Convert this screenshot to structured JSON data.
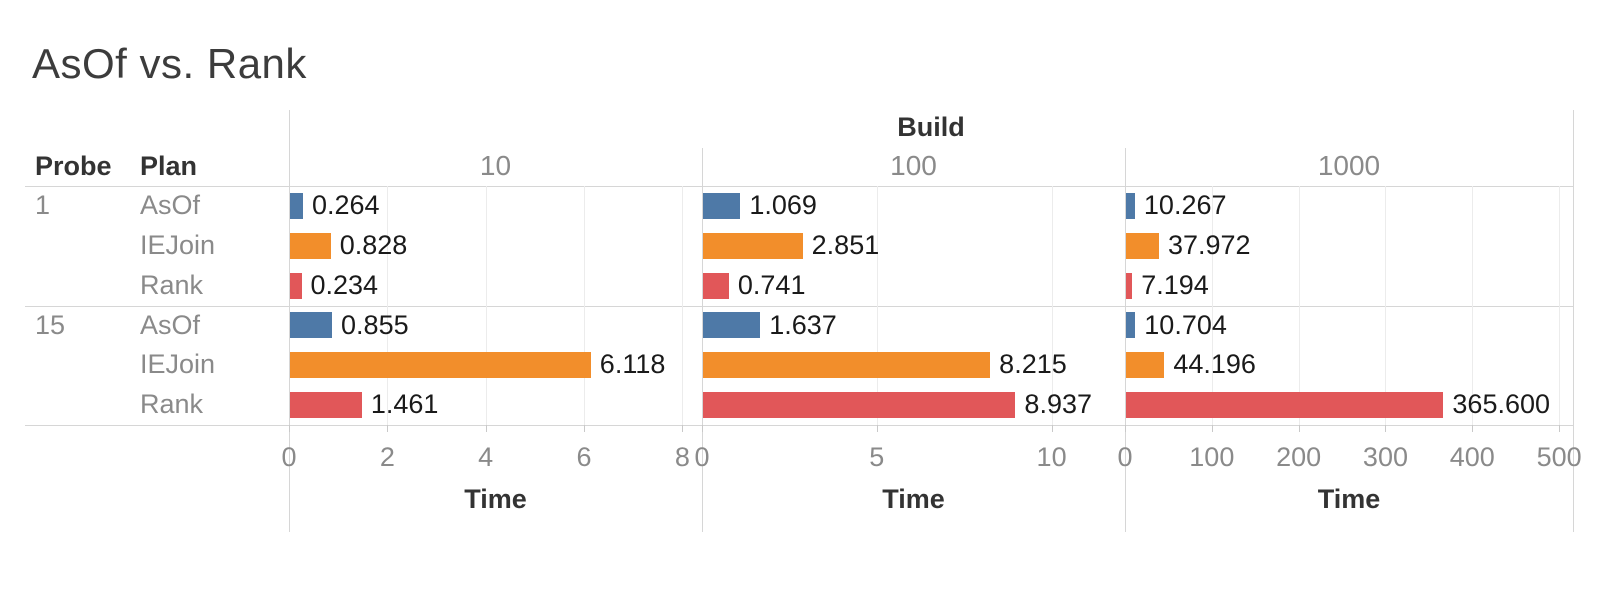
{
  "title": "AsOf vs. Rank",
  "header": {
    "col_field": "Build",
    "row_fields": [
      "Probe",
      "Plan"
    ]
  },
  "palette": {
    "AsOf": "#4e79a7",
    "IEJoin": "#f28e2b",
    "Rank": "#e15759"
  },
  "chart_data": {
    "type": "bar",
    "orientation": "horizontal",
    "grid": true,
    "legend": false,
    "value_format_decimals": 3,
    "xlabel": "Time",
    "columns": [
      {
        "build": "10",
        "xlim": [
          0,
          8.4
        ],
        "ticks": [
          0,
          2,
          4,
          6,
          8
        ]
      },
      {
        "build": "100",
        "xlim": [
          0,
          12.1
        ],
        "ticks": [
          0,
          5,
          10
        ]
      },
      {
        "build": "1000",
        "xlim": [
          0,
          516
        ],
        "ticks": [
          0,
          100,
          200,
          300,
          400,
          500
        ]
      }
    ],
    "groups": [
      {
        "probe": "1",
        "rows": [
          {
            "plan": "AsOf",
            "values": [
              0.264,
              1.069,
              10.267
            ]
          },
          {
            "plan": "IEJoin",
            "values": [
              0.828,
              2.851,
              37.972
            ]
          },
          {
            "plan": "Rank",
            "values": [
              0.234,
              0.741,
              7.194
            ]
          }
        ]
      },
      {
        "probe": "15",
        "rows": [
          {
            "plan": "AsOf",
            "values": [
              0.855,
              1.637,
              10.704
            ]
          },
          {
            "plan": "IEJoin",
            "values": [
              6.118,
              8.215,
              44.196
            ]
          },
          {
            "plan": "Rank",
            "values": [
              1.461,
              8.937,
              365.6
            ]
          }
        ]
      }
    ]
  }
}
